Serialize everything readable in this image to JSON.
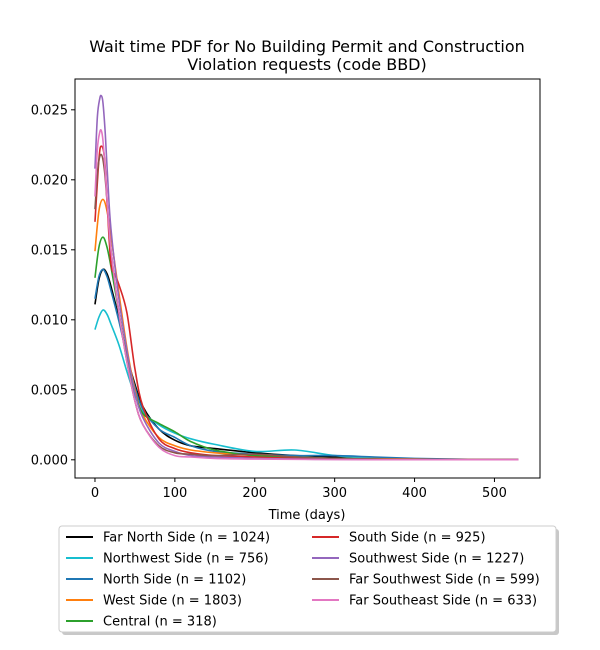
{
  "chart_data": {
    "type": "line",
    "title": "Wait time PDF for No Building Permit and Construction\nViolation  requests (code BBD)",
    "xlabel": "Time (days)",
    "ylabel": "",
    "xlim": [
      -25,
      557
    ],
    "ylim": [
      -0.0013,
      0.0272
    ],
    "xticks": [
      0,
      100,
      200,
      300,
      400,
      500
    ],
    "yticks": [
      0.0,
      0.005,
      0.01,
      0.015,
      0.02,
      0.025
    ],
    "yticks_text": [
      "0.000",
      "0.005",
      "0.010",
      "0.015",
      "0.020",
      "0.025"
    ],
    "grid": false,
    "legend_position": "below plot",
    "series": [
      {
        "name": "Far North Side (n = 1024)",
        "color": "#000000",
        "x": [
          0,
          5,
          10,
          15,
          20,
          30,
          40,
          50,
          60,
          80,
          100,
          120,
          150,
          200,
          250,
          300,
          350,
          400,
          450,
          500,
          530
        ],
        "y": [
          0.0111,
          0.0129,
          0.0136,
          0.0133,
          0.0124,
          0.0101,
          0.0074,
          0.0054,
          0.0038,
          0.0022,
          0.0014,
          0.001,
          0.0008,
          0.0005,
          0.0003,
          0.0002,
          0.0001,
          5e-05,
          3e-05,
          2e-05,
          1e-05
        ]
      },
      {
        "name": "Northwest Side (n = 756)",
        "color": "#17becf",
        "x": [
          0,
          5,
          10,
          15,
          20,
          30,
          40,
          50,
          60,
          80,
          100,
          120,
          150,
          200,
          250,
          300,
          350,
          400,
          450,
          500,
          530
        ],
        "y": [
          0.0093,
          0.0102,
          0.0107,
          0.0104,
          0.0097,
          0.0082,
          0.0063,
          0.0046,
          0.0034,
          0.0025,
          0.0019,
          0.0015,
          0.0011,
          0.0006,
          0.0007,
          0.0003,
          0.0001,
          5e-05,
          3e-05,
          2e-05,
          1e-05
        ]
      },
      {
        "name": "North Side (n = 1102)",
        "color": "#1f77b4",
        "x": [
          0,
          5,
          10,
          15,
          20,
          30,
          40,
          50,
          60,
          80,
          100,
          120,
          150,
          200,
          250,
          300,
          350,
          400,
          450,
          500,
          530
        ],
        "y": [
          0.0115,
          0.0131,
          0.0136,
          0.0131,
          0.0121,
          0.0099,
          0.0074,
          0.0052,
          0.0036,
          0.0022,
          0.0016,
          0.001,
          0.0006,
          0.0004,
          0.0003,
          0.0003,
          0.0002,
          0.0001,
          5e-05,
          2e-05,
          1e-05
        ]
      },
      {
        "name": "West Side (n = 1803)",
        "color": "#ff7f0e",
        "x": [
          0,
          5,
          10,
          15,
          20,
          30,
          40,
          50,
          60,
          80,
          100,
          120,
          150,
          200,
          250,
          300,
          350,
          400,
          450,
          500,
          530
        ],
        "y": [
          0.0149,
          0.0178,
          0.0186,
          0.0178,
          0.016,
          0.0119,
          0.008,
          0.005,
          0.0032,
          0.0016,
          0.001,
          0.0007,
          0.0005,
          0.0003,
          0.0002,
          0.0001,
          8e-05,
          5e-05,
          3e-05,
          2e-05,
          1e-05
        ]
      },
      {
        "name": "Central (n = 318)",
        "color": "#2ca02c",
        "x": [
          0,
          5,
          10,
          15,
          20,
          30,
          40,
          50,
          60,
          80,
          100,
          120,
          150,
          200,
          250,
          300,
          350,
          400,
          450,
          500,
          530
        ],
        "y": [
          0.013,
          0.0152,
          0.0159,
          0.0152,
          0.0138,
          0.0105,
          0.0072,
          0.0048,
          0.0033,
          0.0026,
          0.002,
          0.0013,
          0.0007,
          0.0003,
          0.0002,
          0.0001,
          5e-05,
          3e-05,
          2e-05,
          1e-05,
          1e-05
        ]
      },
      {
        "name": "South Side (n = 925)",
        "color": "#d62728",
        "x": [
          0,
          5,
          8,
          12,
          16,
          20,
          25,
          30,
          40,
          50,
          60,
          80,
          100,
          120,
          150,
          200,
          250,
          300,
          350,
          400,
          450,
          500,
          530
        ],
        "y": [
          0.017,
          0.0215,
          0.0224,
          0.0215,
          0.0175,
          0.014,
          0.0132,
          0.0125,
          0.0105,
          0.0065,
          0.0038,
          0.0015,
          0.0008,
          0.0005,
          0.0003,
          0.0002,
          0.0001,
          5e-05,
          3e-05,
          2e-05,
          1e-05,
          1e-05,
          1e-05
        ]
      },
      {
        "name": "Southwest Side (n = 1227)",
        "color": "#9467bd",
        "x": [
          0,
          3,
          6,
          8,
          10,
          13,
          16,
          20,
          30,
          40,
          50,
          60,
          80,
          100,
          120,
          150,
          200,
          250,
          300,
          350,
          400,
          450,
          500,
          530
        ],
        "y": [
          0.0208,
          0.0245,
          0.0258,
          0.026,
          0.0255,
          0.0232,
          0.02,
          0.0165,
          0.0115,
          0.0078,
          0.0048,
          0.003,
          0.0012,
          0.0006,
          0.0003,
          0.0002,
          0.0001,
          5e-05,
          3e-05,
          2e-05,
          1e-05,
          1e-05,
          1e-05,
          1e-05
        ]
      },
      {
        "name": "Far Southwest Side (n = 599)",
        "color": "#8c564b",
        "x": [
          0,
          4,
          8,
          12,
          16,
          20,
          30,
          40,
          50,
          60,
          80,
          100,
          120,
          150,
          200,
          250,
          300,
          350,
          400,
          450,
          500,
          530
        ],
        "y": [
          0.0179,
          0.021,
          0.0218,
          0.0206,
          0.0178,
          0.015,
          0.0105,
          0.007,
          0.0042,
          0.0025,
          0.001,
          0.0005,
          0.0004,
          0.0003,
          0.0004,
          0.0002,
          0.0001,
          5e-05,
          3e-05,
          2e-05,
          1e-05,
          1e-05
        ]
      },
      {
        "name": "Far Southeast Side (n = 633)",
        "color": "#e377c2",
        "x": [
          0,
          3,
          6,
          8,
          10,
          13,
          16,
          20,
          30,
          40,
          50,
          60,
          80,
          100,
          120,
          150,
          200,
          250,
          300,
          350,
          400,
          450,
          500,
          530
        ],
        "y": [
          0.0188,
          0.0222,
          0.0234,
          0.0235,
          0.0228,
          0.0205,
          0.0178,
          0.015,
          0.0105,
          0.007,
          0.0042,
          0.0025,
          0.0009,
          0.0003,
          0.0002,
          0.0001,
          5e-05,
          3e-05,
          2e-05,
          1e-05,
          1e-05,
          1e-05,
          1e-05,
          1e-05
        ]
      }
    ]
  }
}
